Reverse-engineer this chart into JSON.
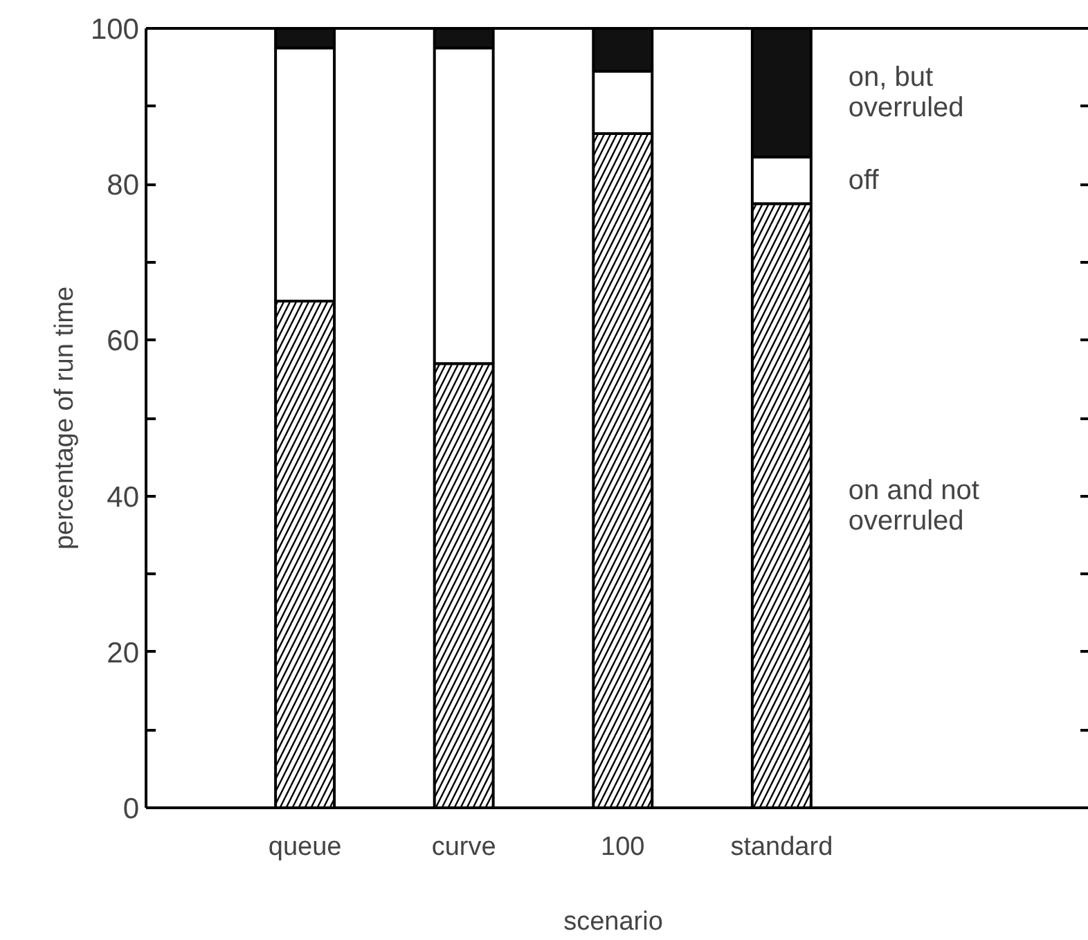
{
  "chart_data": {
    "type": "bar",
    "stacked": true,
    "xlabel": "scenario",
    "ylabel": "percentage of run time",
    "categories": [
      "queue",
      "curve",
      "100",
      "standard"
    ],
    "series": [
      {
        "name": "on and not overruled",
        "color": "#ffffff",
        "values": [
          65,
          57,
          86.5,
          77.5
        ]
      },
      {
        "name": "off",
        "color": "#ffffff",
        "values": [
          32.5,
          40.5,
          8,
          6
        ]
      },
      {
        "name": "on, but overruled",
        "color": "#111111",
        "values": [
          2.5,
          2.5,
          5.5,
          16.5
        ]
      }
    ],
    "ylim": [
      0,
      100
    ],
    "yticks": [
      0,
      20,
      40,
      60,
      80,
      100
    ],
    "grid": false,
    "legend": "right"
  }
}
